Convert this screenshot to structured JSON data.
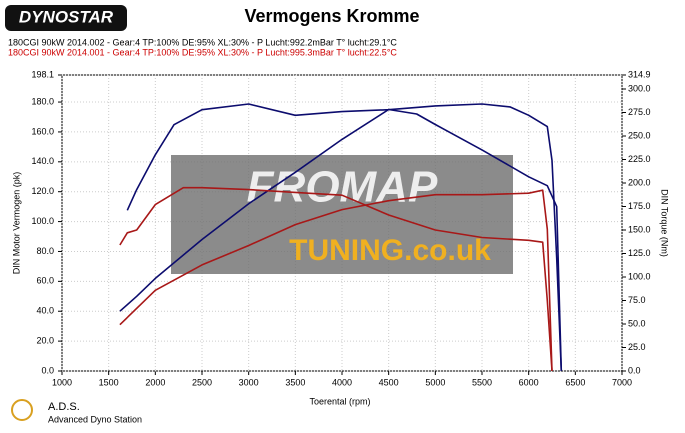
{
  "chart_data": {
    "type": "line",
    "title": "Vermogens Kromme",
    "logo": "DYNOSTAR",
    "header_lines": [
      {
        "text": "180CGI 90kW 2014.002 - Gear:4 TP:100% DE:95% XL:30%    - P Lucht:992.2mBar T° lucht:29.1°C",
        "color": "#000000"
      },
      {
        "text": "180CGI 90kW 2014.001 - Gear:4 TP:100% DE:95% XL:30%    - P Lucht:995.3mBar T° lucht:22.5°C",
        "color": "#cc0000"
      }
    ],
    "watermark": [
      "FROMAP",
      "TUNING.co.uk"
    ],
    "footer": [
      "A.D.S.",
      "Advanced Dyno Station"
    ],
    "x_label": "Toerental (rpm)",
    "y_label": "DIN Motor Vermogen (pk)",
    "y2_label": "DIN Torque (Nm)",
    "xlim": [
      1000,
      7000
    ],
    "xticks": [
      1000,
      1500,
      2000,
      2500,
      3000,
      3500,
      4000,
      4500,
      5000,
      5500,
      6000,
      6500,
      7000
    ],
    "ylim": [
      0,
      198.1
    ],
    "yticks": [
      {
        "value": 0,
        "label": "0.0"
      },
      {
        "value": 20,
        "label": "20.0"
      },
      {
        "value": 40,
        "label": "40.0"
      },
      {
        "value": 60,
        "label": "60.0"
      },
      {
        "value": 80,
        "label": "80.0"
      },
      {
        "value": 100,
        "label": "100.0"
      },
      {
        "value": 120,
        "label": "120.0"
      },
      {
        "value": 140,
        "label": "140.0"
      },
      {
        "value": 160,
        "label": "160.0"
      },
      {
        "value": 180,
        "label": "180.0"
      },
      {
        "value": 198.1,
        "label": "198.1"
      }
    ],
    "y2lim": [
      0,
      314.9
    ],
    "y2ticks": [
      {
        "value": 0,
        "label": "0.0"
      },
      {
        "value": 25,
        "label": "25.0"
      },
      {
        "value": 50,
        "label": "50.0"
      },
      {
        "value": 75,
        "label": "75.0"
      },
      {
        "value": 100,
        "label": "100.0"
      },
      {
        "value": 125,
        "label": "125.0"
      },
      {
        "value": 150,
        "label": "150.0"
      },
      {
        "value": 175,
        "label": "175.0"
      },
      {
        "value": 200,
        "label": "200.0"
      },
      {
        "value": 225,
        "label": "225.0"
      },
      {
        "value": 250,
        "label": "250.0"
      },
      {
        "value": 275,
        "label": "275.0"
      },
      {
        "value": 300,
        "label": "300.0"
      },
      {
        "value": 314.9,
        "label": "314.9"
      }
    ],
    "grid": true,
    "series": [
      {
        "color": "#0c0c6e",
        "axis": "y2",
        "x": [
          1700,
          1800,
          2000,
          2200,
          2500,
          3000,
          3500,
          4000,
          4500,
          5000,
          5500,
          5800,
          6000,
          6200,
          6250,
          6300,
          6350
        ],
        "values": [
          171,
          193,
          230,
          262,
          278,
          284,
          272,
          276,
          278,
          282,
          284,
          281,
          272,
          260,
          224,
          120,
          0
        ]
      },
      {
        "color": "#0c0c6e",
        "x": [
          1620,
          1800,
          2000,
          2500,
          3000,
          3500,
          4000,
          4500,
          4800,
          5000,
          5500,
          6000,
          6200,
          6300,
          6350
        ],
        "values": [
          40,
          50,
          62,
          88,
          112,
          133,
          155,
          175,
          172,
          165,
          148,
          130,
          124,
          110,
          0
        ]
      },
      {
        "color": "#a81818",
        "axis": "y2",
        "x": [
          1620,
          1700,
          1800,
          2000,
          2300,
          2500,
          3000,
          3500,
          4000,
          4500,
          5000,
          5500,
          6000,
          6150,
          6200,
          6250
        ],
        "values": [
          134,
          147,
          150,
          177,
          195,
          195,
          193,
          190,
          187,
          166,
          150,
          142,
          139,
          137,
          75,
          0
        ]
      },
      {
        "color": "#a81818",
        "x": [
          1620,
          2000,
          2500,
          3000,
          3500,
          4000,
          4500,
          5000,
          5500,
          6000,
          6150,
          6200,
          6250
        ],
        "values": [
          31,
          54,
          71,
          84,
          98,
          108,
          114,
          118,
          118,
          119,
          121,
          95,
          0
        ]
      }
    ]
  }
}
